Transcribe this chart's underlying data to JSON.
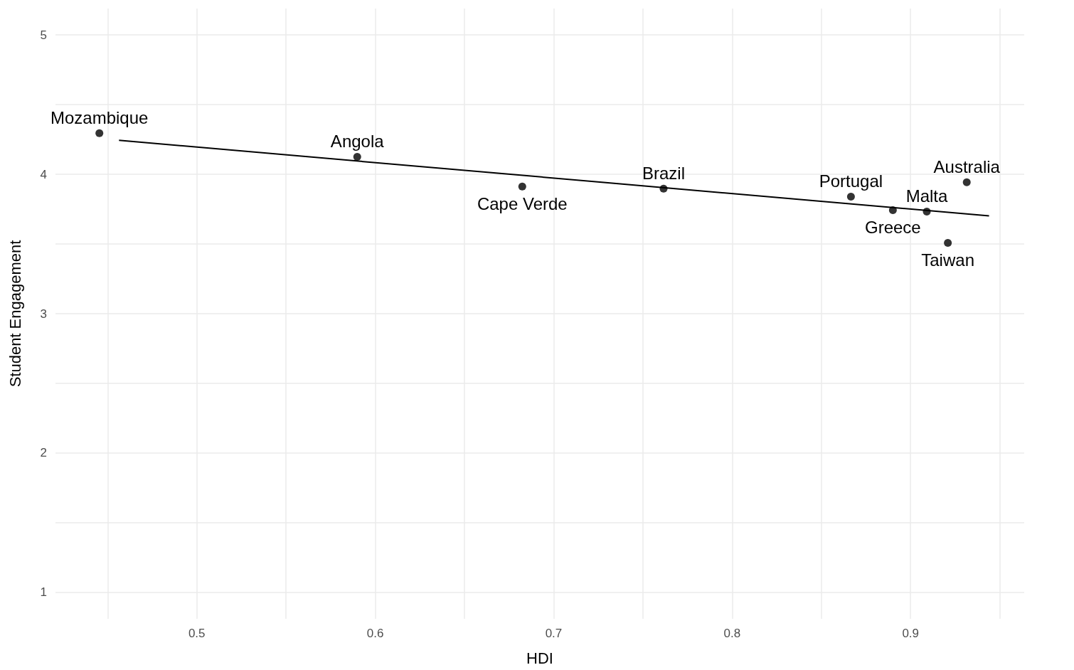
{
  "chart_data": {
    "type": "scatter",
    "xlabel": "HDI",
    "ylabel": "Student Engagement",
    "xlim": [
      0.4208,
      0.9637
    ],
    "ylim": [
      0.81,
      5.19
    ],
    "xticks": [
      {
        "value": 0.45,
        "label": null
      },
      0.5,
      {
        "value": 0.55,
        "label": null
      },
      0.6,
      {
        "value": 0.65,
        "label": null
      },
      0.7,
      {
        "value": 0.75,
        "label": null
      },
      0.8,
      {
        "value": 0.85,
        "label": null
      },
      0.9,
      {
        "value": 0.95,
        "label": null
      }
    ],
    "yticks": [
      1,
      {
        "value": 1.5,
        "label": null
      },
      2,
      {
        "value": 2.5,
        "label": null
      },
      3,
      {
        "value": 3.5,
        "label": null
      },
      4,
      {
        "value": 4.5,
        "label": null
      },
      5
    ],
    "grid": true,
    "marker": "circle",
    "series": [
      {
        "color": "#000000",
        "x": [
          0.4454,
          0.5899,
          0.6824,
          0.7616,
          0.8666,
          0.8901,
          0.9091,
          0.9209,
          0.9315
        ],
        "values": [
          4.295,
          4.126,
          3.912,
          3.897,
          3.84,
          3.743,
          3.733,
          3.508,
          3.943
        ]
      },
      {
        "type": "line",
        "marker": "none",
        "color": "#000000",
        "x": [
          0.4564,
          0.944
        ],
        "values": [
          4.244,
          3.702
        ]
      }
    ],
    "annotations": [
      {
        "text": "Mozambique",
        "x": 0.4454,
        "y": 4.295
      },
      {
        "text": "Angola",
        "x": 0.5899,
        "y": 4.126
      },
      {
        "text": "Cape Verde",
        "x": 0.6824,
        "y": 3.912
      },
      {
        "text": "Brazil",
        "x": 0.7616,
        "y": 3.897
      },
      {
        "text": "Portugal",
        "x": 0.8666,
        "y": 3.84
      },
      {
        "text": "Greece",
        "x": 0.8901,
        "y": 3.743
      },
      {
        "text": "Malta",
        "x": 0.9091,
        "y": 3.733
      },
      {
        "text": "Taiwan",
        "x": 0.9209,
        "y": 3.508
      },
      {
        "text": "Australia",
        "x": 0.9315,
        "y": 3.943
      }
    ]
  }
}
